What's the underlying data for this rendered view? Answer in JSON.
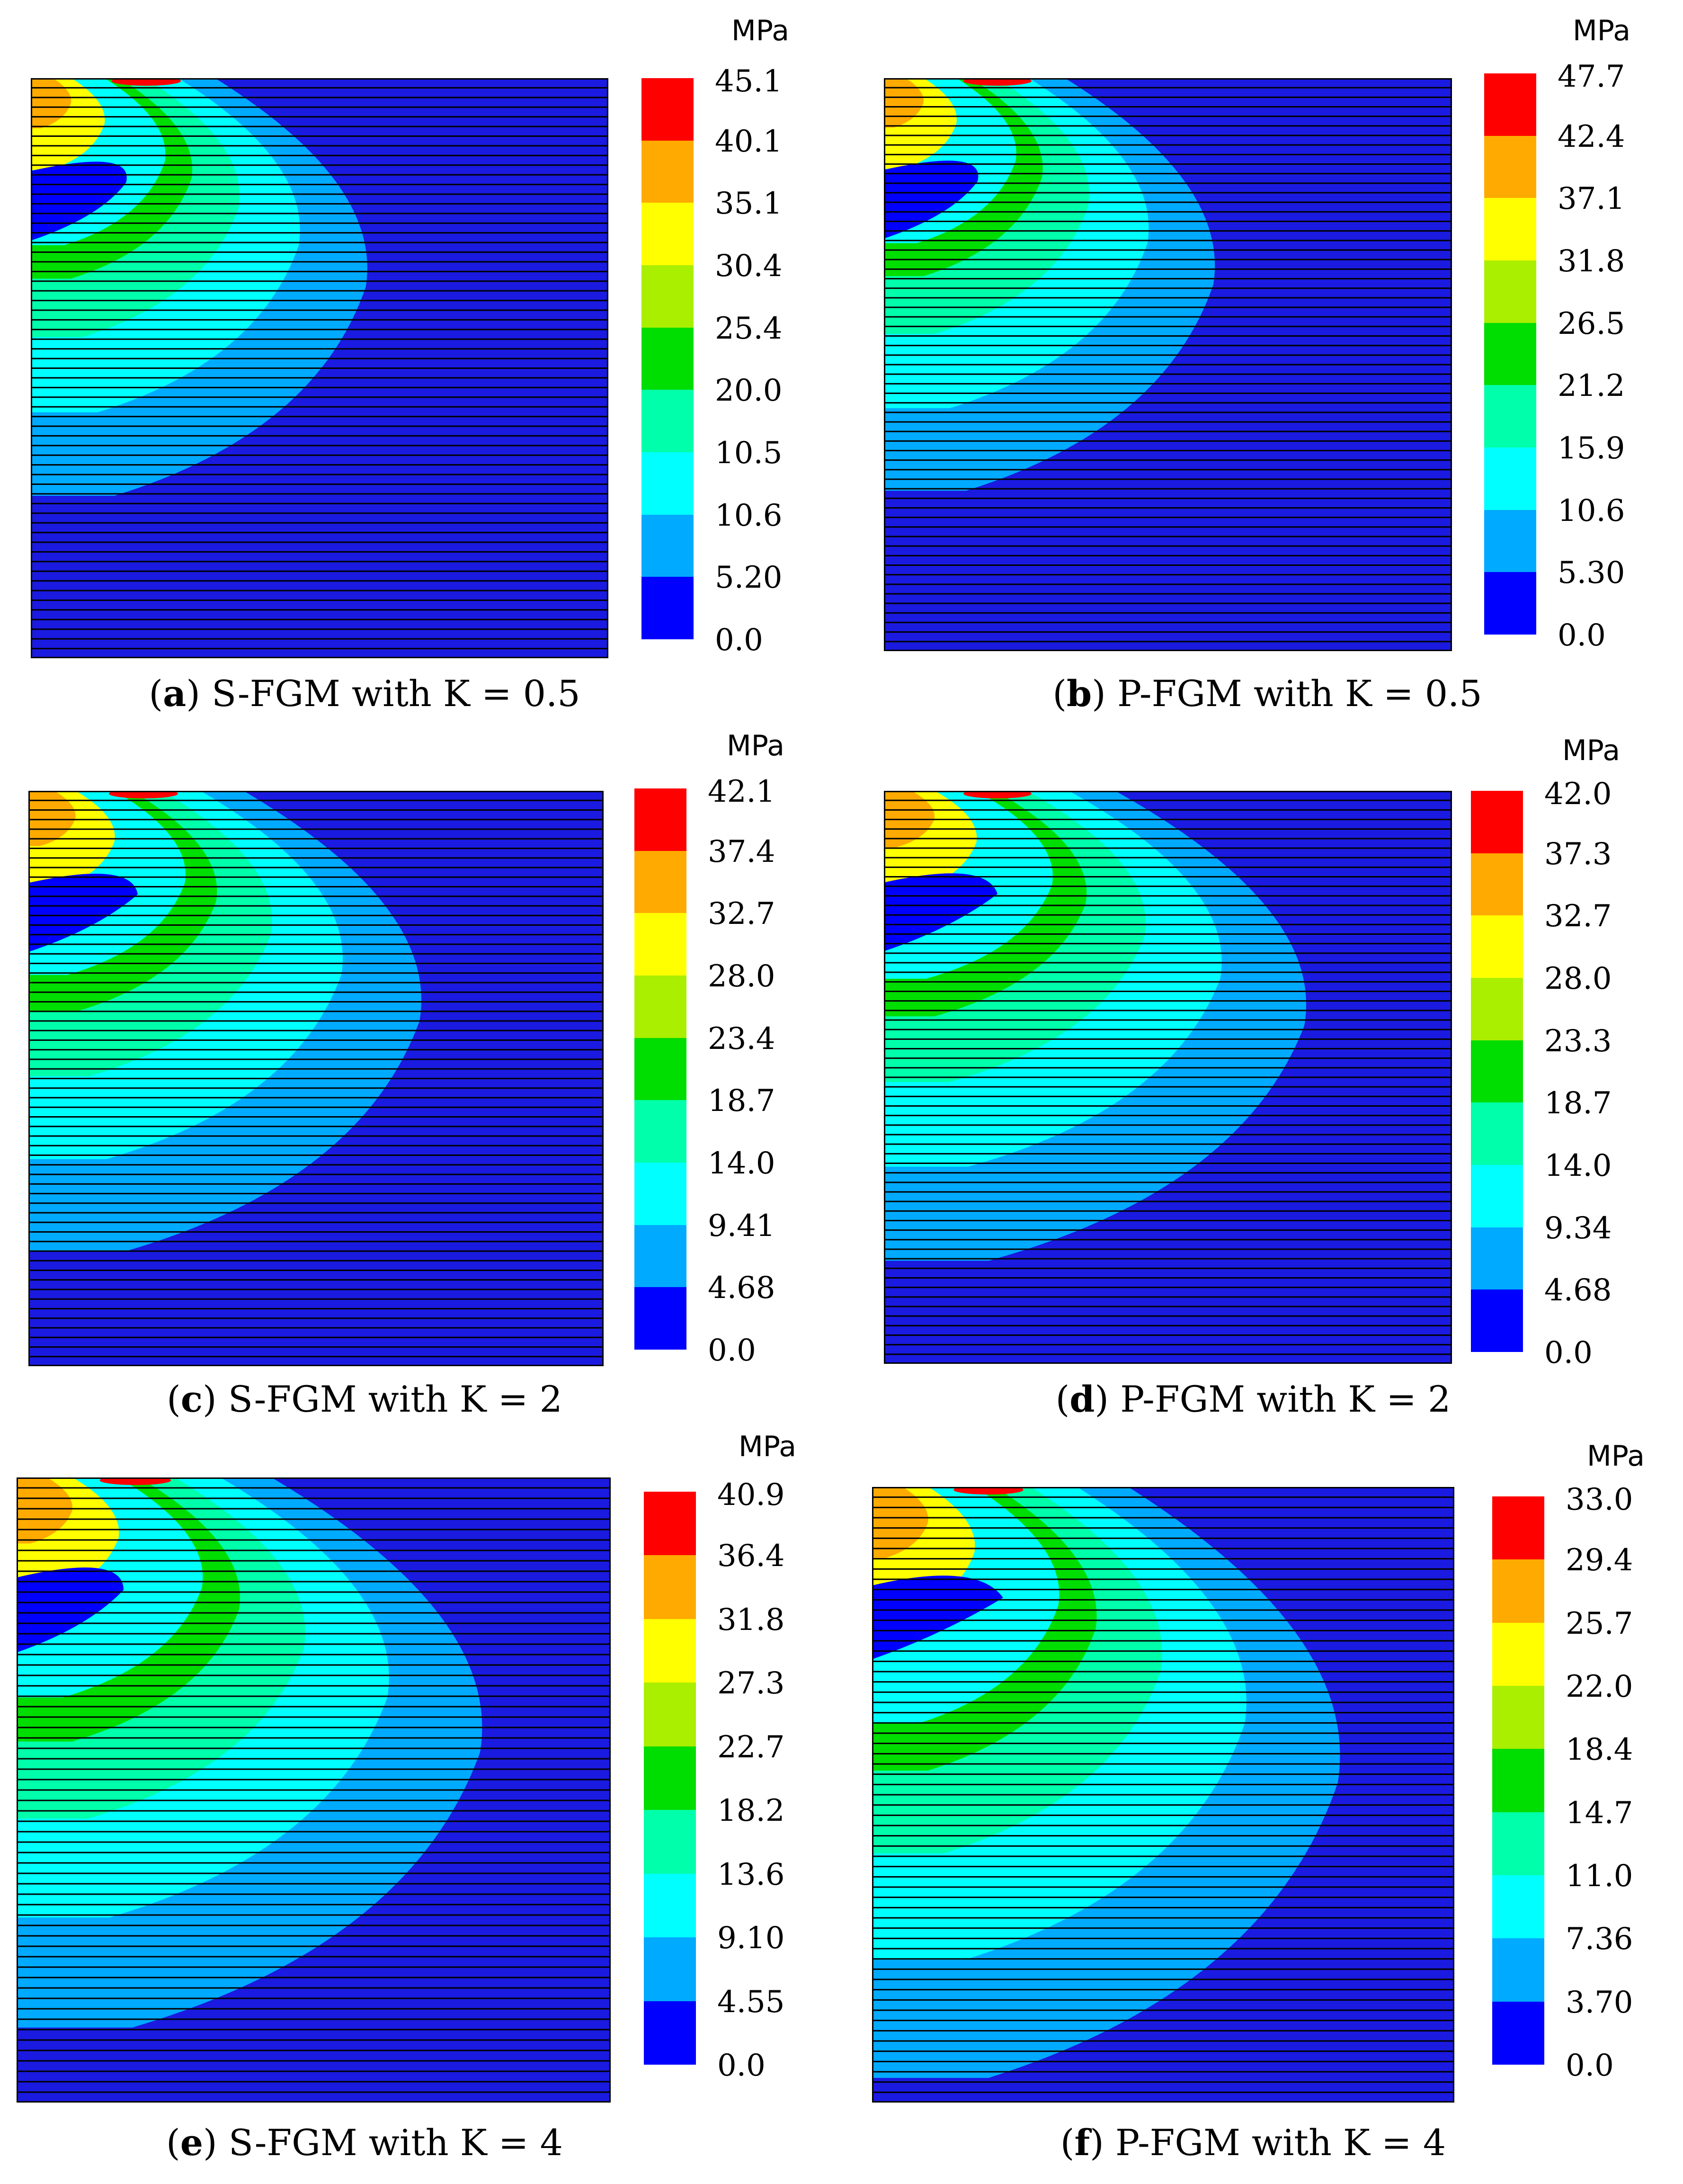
{
  "colors": {
    "levels": [
      "#0000ff",
      "#00aaff",
      "#00ffff",
      "#00ffaa",
      "#00dd00",
      "#aaee00",
      "#ffff00",
      "#ffaa00",
      "#ff0000"
    ],
    "background": "#1a1ae0",
    "layer_lines": "#000000"
  },
  "panels": [
    {
      "id": "a",
      "unit": "MPa",
      "ticks": [
        "45.1",
        "40.1",
        "35.1",
        "30.4",
        "25.4",
        "20.0",
        "10.5",
        "10.6",
        "5.20",
        "0.0"
      ],
      "caption_letter": "a",
      "caption_text": " S-FGM with K = 0.5"
    },
    {
      "id": "b",
      "unit": "MPa",
      "ticks": [
        "47.7",
        "42.4",
        "37.1",
        "31.8",
        "26.5",
        "21.2",
        "15.9",
        "10.6",
        "5.30",
        "0.0"
      ],
      "caption_letter": "b",
      "caption_text": " P-FGM with K = 0.5"
    },
    {
      "id": "c",
      "unit": "MPa",
      "ticks": [
        "42.1",
        "37.4",
        "32.7",
        "28.0",
        "23.4",
        "18.7",
        "14.0",
        "9.41",
        "4.68",
        "0.0"
      ],
      "caption_letter": "c",
      "caption_text": " S-FGM with K = 2"
    },
    {
      "id": "d",
      "unit": "MPa",
      "ticks": [
        "42.0",
        "37.3",
        "32.7",
        "28.0",
        "23.3",
        "18.7",
        "14.0",
        "9.34",
        "4.68",
        "0.0"
      ],
      "caption_letter": "d",
      "caption_text": " P-FGM with K = 2"
    },
    {
      "id": "e",
      "unit": "MPa",
      "ticks": [
        "40.9",
        "36.4",
        "31.8",
        "27.3",
        "22.7",
        "18.2",
        "13.6",
        "9.10",
        "4.55",
        "0.0"
      ],
      "caption_letter": "e",
      "caption_text": " S-FGM with K = 4"
    },
    {
      "id": "f",
      "unit": "MPa",
      "ticks": [
        "33.0",
        "29.4",
        "25.7",
        "22.0",
        "18.4",
        "14.7",
        "11.0",
        "7.36",
        "3.70",
        "0.0"
      ],
      "caption_letter": "f",
      "caption_text": " P-FGM with K = 4"
    }
  ]
}
